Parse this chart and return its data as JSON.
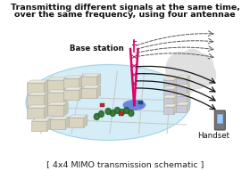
{
  "title_line1": "Transmitting different signals at the same time,",
  "title_line2": "over the same frequency, using four antennae",
  "caption": "[ 4x4 MIMO transmission schematic ]",
  "label_base": "Base station",
  "label_handset": "Handset",
  "bg_color": "#ffffff",
  "title_fontsize": 6.8,
  "caption_fontsize": 6.8,
  "label_fontsize": 6.2,
  "ellipse_color": "#aaddf0",
  "tower_color": "#dd0066",
  "arrow_color": "#111111",
  "cloud_color": "#e0e0e0",
  "building_color": "#d8d4c0",
  "road_color": "#c8c8c8",
  "grid_color": "#bbbbbb"
}
